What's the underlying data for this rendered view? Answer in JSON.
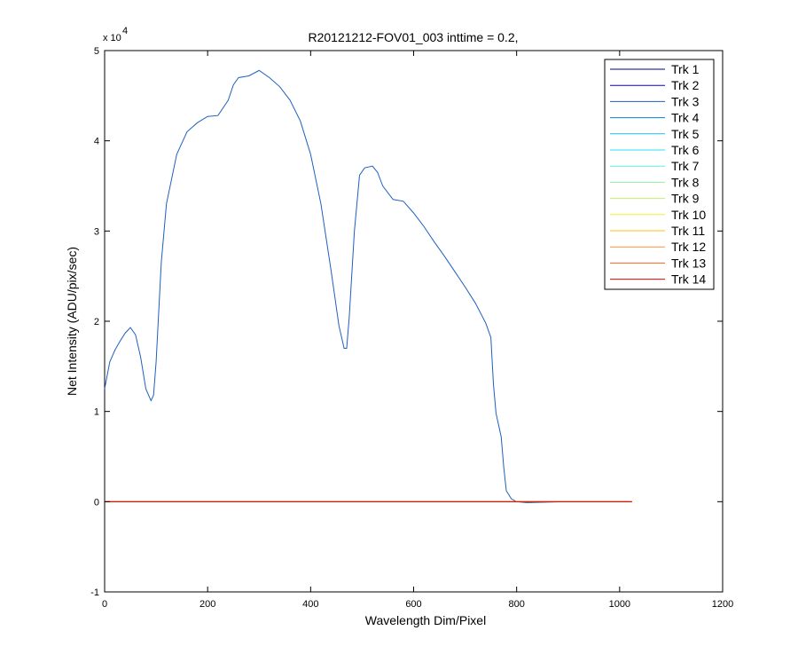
{
  "chart_data": {
    "type": "line",
    "title": "R20121212-FOV01_003 inttime = 0.2,",
    "xlabel": "Wavelength Dim/Pixel",
    "ylabel": "Net Intensity (ADU/pix/sec)",
    "xlim": [
      0,
      1200
    ],
    "ylim": [
      -1,
      5
    ],
    "y_scale_factor_label": "x 10",
    "y_scale_exponent": "4",
    "x_ticks": [
      0,
      200,
      400,
      600,
      800,
      1000,
      1200
    ],
    "x_tick_labels": [
      "0",
      "200",
      "400",
      "600",
      "800",
      "1000",
      "1200"
    ],
    "y_ticks": [
      -1,
      0,
      1,
      2,
      3,
      4,
      5
    ],
    "y_tick_labels": [
      "-1",
      "0",
      "1",
      "2",
      "3",
      "4",
      "5"
    ],
    "grid": false,
    "legend_position": "top-right",
    "series": [
      {
        "name": "Trk 1",
        "color": "#00008f",
        "x": [
          0,
          1024
        ],
        "y": [
          0,
          0
        ]
      },
      {
        "name": "Trk 2",
        "color": "#0000df",
        "x": [
          0,
          1024
        ],
        "y": [
          0,
          0
        ]
      },
      {
        "name": "Trk 3",
        "color": "#1f5fbf",
        "x": [
          0,
          10,
          20,
          30,
          40,
          50,
          60,
          70,
          80,
          90,
          95,
          100,
          110,
          120,
          140,
          160,
          180,
          200,
          220,
          240,
          250,
          260,
          280,
          300,
          320,
          340,
          360,
          380,
          400,
          420,
          440,
          455,
          465,
          470,
          475,
          485,
          495,
          505,
          520,
          530,
          540,
          560,
          580,
          600,
          620,
          640,
          660,
          680,
          700,
          720,
          740,
          750,
          755,
          760,
          770,
          775,
          780,
          790,
          800,
          820,
          900,
          1024
        ],
        "y": [
          1.25,
          1.55,
          1.68,
          1.78,
          1.87,
          1.93,
          1.85,
          1.6,
          1.25,
          1.12,
          1.18,
          1.55,
          2.65,
          3.3,
          3.85,
          4.1,
          4.2,
          4.27,
          4.28,
          4.45,
          4.62,
          4.7,
          4.72,
          4.78,
          4.7,
          4.6,
          4.45,
          4.22,
          3.85,
          3.3,
          2.55,
          1.95,
          1.7,
          1.7,
          2.05,
          3.0,
          3.62,
          3.7,
          3.72,
          3.65,
          3.5,
          3.35,
          3.33,
          3.2,
          3.05,
          2.88,
          2.72,
          2.55,
          2.38,
          2.2,
          1.98,
          1.82,
          1.3,
          0.98,
          0.72,
          0.38,
          0.12,
          0.03,
          0.0,
          -0.01,
          0.0,
          0.0
        ]
      },
      {
        "name": "Trk 4",
        "color": "#0f7fbf",
        "x": [
          0,
          1024
        ],
        "y": [
          0,
          0
        ]
      },
      {
        "name": "Trk 5",
        "color": "#1fbfdf",
        "x": [
          0,
          1024
        ],
        "y": [
          0,
          0
        ]
      },
      {
        "name": "Trk 6",
        "color": "#2fdfef",
        "x": [
          0,
          1024
        ],
        "y": [
          0,
          0
        ]
      },
      {
        "name": "Trk 7",
        "color": "#5fefdf",
        "x": [
          0,
          1024
        ],
        "y": [
          0,
          0
        ]
      },
      {
        "name": "Trk 8",
        "color": "#8fef9f",
        "x": [
          0,
          1024
        ],
        "y": [
          0,
          0
        ]
      },
      {
        "name": "Trk 9",
        "color": "#bfef6f",
        "x": [
          0,
          1024
        ],
        "y": [
          0,
          0
        ]
      },
      {
        "name": "Trk 10",
        "color": "#efef3f",
        "x": [
          0,
          1024
        ],
        "y": [
          0,
          0
        ]
      },
      {
        "name": "Trk 11",
        "color": "#ffbf1f",
        "x": [
          0,
          1024
        ],
        "y": [
          0,
          0
        ]
      },
      {
        "name": "Trk 12",
        "color": "#ff8f3f",
        "x": [
          0,
          1024
        ],
        "y": [
          0,
          0
        ]
      },
      {
        "name": "Trk 13",
        "color": "#ff5f1f",
        "x": [
          0,
          1024
        ],
        "y": [
          0,
          0
        ]
      },
      {
        "name": "Trk 14",
        "color": "#df0000",
        "x": [
          0,
          1024
        ],
        "y": [
          0,
          0
        ]
      }
    ]
  }
}
